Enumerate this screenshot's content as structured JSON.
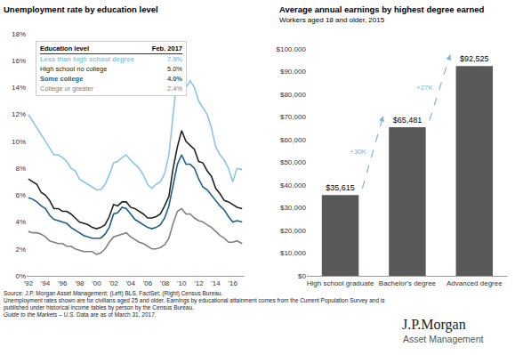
{
  "chart_data": [
    {
      "type": "line",
      "title": "Unemployment rate by education level",
      "x": [
        1992,
        1992.5,
        1993,
        1993.5,
        1994,
        1994.5,
        1995,
        1995.5,
        1996,
        1996.5,
        1997,
        1997.5,
        1998,
        1998.5,
        1999,
        1999.5,
        2000,
        2000.5,
        2001,
        2001.5,
        2002,
        2002.5,
        2003,
        2003.5,
        2004,
        2004.5,
        2005,
        2005.5,
        2006,
        2006.5,
        2007,
        2007.5,
        2008,
        2008.5,
        2009,
        2009.5,
        2010,
        2010.5,
        2011,
        2011.5,
        2012,
        2012.5,
        2013,
        2013.5,
        2014,
        2014.5,
        2015,
        2015.5,
        2016,
        2016.5,
        2017.1
      ],
      "series": [
        {
          "name": "Less than high school degree",
          "color": "#8cc4e6",
          "values": [
            12.0,
            11.5,
            11.0,
            10.5,
            10.0,
            9.5,
            9.0,
            9.0,
            8.8,
            8.5,
            8.0,
            7.8,
            7.2,
            7.0,
            6.8,
            6.6,
            6.4,
            6.4,
            6.8,
            7.5,
            8.4,
            8.5,
            8.8,
            9.0,
            8.6,
            8.3,
            8.0,
            7.5,
            6.8,
            6.5,
            6.8,
            7.0,
            7.6,
            9.0,
            12.0,
            15.0,
            15.6,
            14.0,
            14.5,
            14.0,
            13.0,
            12.5,
            12.0,
            11.0,
            9.6,
            9.0,
            8.6,
            8.0,
            7.0,
            8.0,
            7.9
          ]
        },
        {
          "name": "High school no college",
          "color": "#222222",
          "values": [
            7.2,
            7.0,
            6.8,
            6.2,
            6.0,
            5.6,
            5.0,
            5.0,
            4.8,
            4.8,
            4.6,
            4.3,
            4.0,
            3.9,
            3.8,
            3.6,
            3.5,
            3.6,
            3.8,
            4.4,
            5.3,
            5.2,
            5.5,
            5.5,
            5.1,
            5.0,
            4.8,
            4.6,
            4.3,
            4.3,
            4.4,
            4.6,
            5.2,
            5.9,
            8.0,
            9.6,
            10.8,
            10.0,
            9.7,
            9.4,
            8.5,
            8.4,
            7.8,
            7.4,
            6.5,
            6.1,
            5.6,
            5.5,
            5.3,
            5.1,
            5.0
          ]
        },
        {
          "name": "Some college",
          "color": "#1f5f8b",
          "values": [
            5.8,
            5.7,
            5.5,
            5.2,
            5.0,
            4.5,
            4.2,
            4.1,
            4.0,
            3.9,
            3.6,
            3.4,
            3.2,
            3.0,
            2.9,
            2.8,
            2.8,
            2.8,
            3.1,
            3.6,
            4.6,
            4.7,
            5.1,
            5.0,
            4.6,
            4.2,
            4.0,
            3.8,
            3.6,
            3.5,
            3.6,
            3.8,
            4.3,
            5.2,
            6.8,
            8.3,
            9.0,
            8.3,
            8.3,
            8.0,
            7.2,
            6.6,
            6.4,
            6.0,
            5.6,
            5.2,
            4.9,
            4.4,
            4.0,
            4.1,
            4.0
          ]
        },
        {
          "name": "College or greater",
          "color": "#808080",
          "values": [
            3.3,
            3.2,
            3.2,
            3.1,
            2.9,
            2.6,
            2.5,
            2.4,
            2.4,
            2.2,
            2.2,
            2.0,
            1.9,
            1.8,
            1.8,
            1.8,
            1.6,
            1.7,
            2.0,
            2.5,
            2.9,
            3.0,
            3.1,
            3.2,
            2.9,
            2.7,
            2.5,
            2.4,
            2.2,
            2.0,
            2.0,
            2.1,
            2.3,
            2.8,
            3.9,
            4.8,
            5.0,
            4.6,
            4.6,
            4.3,
            4.1,
            4.0,
            3.8,
            3.6,
            3.3,
            3.0,
            2.8,
            2.5,
            2.5,
            2.6,
            2.4
          ]
        }
      ],
      "xlim": [
        1991.8,
        2017.4
      ],
      "xticks": [
        {
          "value": 1992,
          "label": "'92"
        },
        {
          "value": 1994,
          "label": "'94"
        },
        {
          "value": 1996,
          "label": "'96"
        },
        {
          "value": 1998,
          "label": "'98"
        },
        {
          "value": 2000,
          "label": "'00"
        },
        {
          "value": 2002,
          "label": "'02"
        },
        {
          "value": 2004,
          "label": "'04"
        },
        {
          "value": 2006,
          "label": "'06"
        },
        {
          "value": 2008,
          "label": "'08"
        },
        {
          "value": 2010,
          "label": "'10"
        },
        {
          "value": 2012,
          "label": "'12"
        },
        {
          "value": 2014,
          "label": "'14"
        },
        {
          "value": 2016,
          "label": "'16"
        }
      ],
      "ylim": [
        0,
        18
      ],
      "yticks": [
        {
          "value": 0,
          "label": "0%"
        },
        {
          "value": 2,
          "label": "2%"
        },
        {
          "value": 4,
          "label": "4%"
        },
        {
          "value": 6,
          "label": "6%"
        },
        {
          "value": 8,
          "label": "8%"
        },
        {
          "value": 10,
          "label": "10%"
        },
        {
          "value": 12,
          "label": "12%"
        },
        {
          "value": 14,
          "label": "14%"
        },
        {
          "value": 16,
          "label": "16%"
        },
        {
          "value": 18,
          "label": "18%"
        }
      ],
      "grid": false,
      "table": {
        "header": [
          "Education level",
          "Feb. 2017"
        ],
        "rows": [
          [
            "Less than high school degree",
            "7.9%"
          ],
          [
            "High school no college",
            "5.0%"
          ],
          [
            "Some college",
            "4.0%"
          ],
          [
            "College or greater",
            "2.4%"
          ]
        ]
      }
    },
    {
      "type": "bar",
      "title": "Average annual earnings by highest degree earned",
      "subtitle": "Workers aged 18 and older, 2015",
      "categories": [
        "High school graduate",
        "Bachelor's degree",
        "Advanced degree"
      ],
      "values": [
        35615,
        65481,
        92525
      ],
      "value_labels": [
        "$35,615",
        "$65,481",
        "$92,525"
      ],
      "color": "#595959",
      "ylim": [
        0,
        100000
      ],
      "yticks": [
        {
          "value": 0,
          "label": "$0"
        },
        {
          "value": 10000,
          "label": "$10,000"
        },
        {
          "value": 20000,
          "label": "$20,000"
        },
        {
          "value": 30000,
          "label": "$30,000"
        },
        {
          "value": 40000,
          "label": "$40,000"
        },
        {
          "value": 50000,
          "label": "$50,000"
        },
        {
          "value": 60000,
          "label": "$60,000"
        },
        {
          "value": 70000,
          "label": "$70,000"
        },
        {
          "value": 80000,
          "label": "$80,000"
        },
        {
          "value": 90000,
          "label": "$90,000"
        },
        {
          "value": 100000,
          "label": "$100,000"
        }
      ],
      "grid": false,
      "data_labels": true,
      "annotations": [
        {
          "text": "+30K",
          "from": 0,
          "to": 1
        },
        {
          "text": "+27K",
          "from": 1,
          "to": 2
        }
      ]
    }
  ],
  "footer": {
    "source": "Source: J.P. Morgan Asset Management; (Left) BLS, FactSet; (Right) Census Bureau.",
    "notes": [
      "Unemployment rates shown are for civilians aged 25 and older. Earnings by educational attainment comes from the Current Population Survey and is",
      "published under historical income tables by person by the Census Bureau."
    ],
    "guide": "Guide to the Markets – U.S.",
    "as_of": "Data are as of March 31, 2017.",
    "logo": "J.P.Morgan",
    "logo_sub": "Asset Management"
  }
}
